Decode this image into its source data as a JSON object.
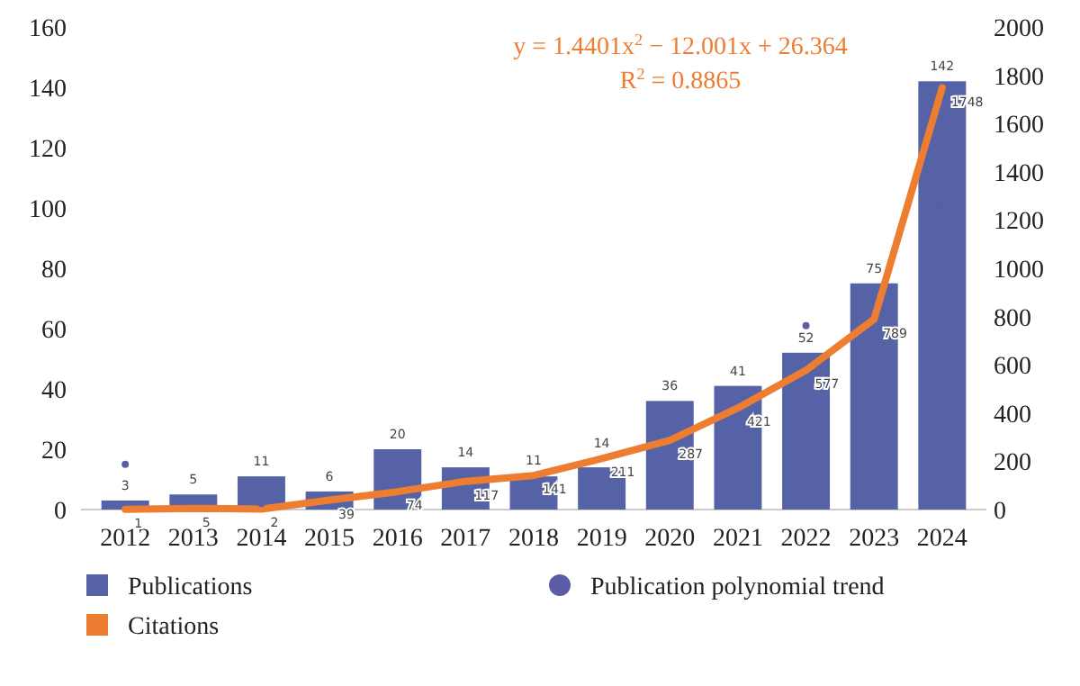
{
  "chart_data": {
    "type": "bar",
    "categories": [
      "2012",
      "2013",
      "2014",
      "2015",
      "2016",
      "2017",
      "2018",
      "2019",
      "2020",
      "2021",
      "2022",
      "2023",
      "2024"
    ],
    "series": [
      {
        "name": "Publications",
        "color": "#5563a6",
        "values": [
          3,
          5,
          11,
          6,
          20,
          14,
          11,
          14,
          36,
          41,
          52,
          75,
          142
        ],
        "value_labels": [
          "3",
          "5",
          "11",
          "6",
          "20",
          "14",
          "11",
          "14",
          "36",
          "41",
          "52",
          "75",
          "142"
        ]
      },
      {
        "name": "Citations",
        "type": "line",
        "axis": "y2",
        "color": "#ed7d31",
        "values": [
          1,
          5,
          2,
          39,
          74,
          117,
          141,
          211,
          287,
          421,
          577,
          789,
          1748
        ],
        "value_labels": [
          "1",
          "5",
          "2",
          "39",
          "74",
          "117",
          "141",
          "211",
          "287",
          "421",
          "577",
          "789",
          "1748"
        ]
      },
      {
        "name": "Publication polynomial trend",
        "type": "scatter",
        "color": "#5b5ea6",
        "marker": "circle",
        "values": [
          15,
          null,
          2,
          null,
          null,
          null,
          null,
          null,
          28,
          null,
          61,
          null,
          101
        ]
      }
    ],
    "ylim": [
      0,
      160
    ],
    "yticks": [
      0,
      20,
      40,
      60,
      80,
      100,
      120,
      140,
      160
    ],
    "y2lim": [
      0,
      2000
    ],
    "y2ticks": [
      0,
      200,
      400,
      600,
      800,
      1000,
      1200,
      1400,
      1600,
      1800,
      2000
    ],
    "annotations": [
      "y = 1.4401x$^{2}$ − 12.001x + 26.364",
      "R$^{2}$ = 0.8865"
    ],
    "legend": "bottom",
    "grid": false
  }
}
